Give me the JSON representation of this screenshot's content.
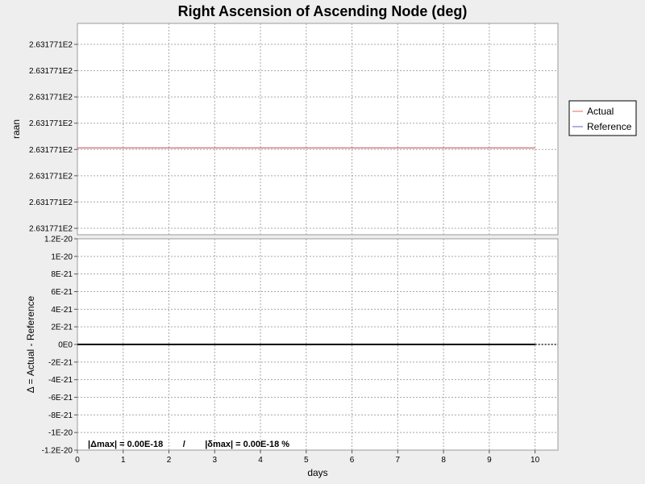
{
  "chart_data": [
    {
      "type": "line",
      "panel": "upper",
      "title": "Right Ascension of Ascending Node (deg)",
      "xlabel": "days",
      "ylabel": "raan",
      "xlim": [
        0,
        10.5
      ],
      "xticks": [
        "0",
        "1",
        "2",
        "3",
        "4",
        "5",
        "6",
        "7",
        "8",
        "9",
        "10"
      ],
      "yticks": [
        "2.631771E2",
        "2.631771E2",
        "2.631771E2",
        "2.631771E2",
        "2.631771E2",
        "2.631771E2",
        "2.631771E2",
        "2.631771E2"
      ],
      "ylim_index": [
        0,
        7
      ],
      "grid": true,
      "legend_position": "right",
      "series": [
        {
          "name": "Actual",
          "color": "#e8665c",
          "x": [
            0,
            10
          ],
          "y_index": [
            3.06,
            3.06
          ]
        },
        {
          "name": "Reference",
          "color": "#6060c0",
          "x": [
            0,
            10
          ],
          "y_index": [
            3.06,
            3.06
          ]
        }
      ]
    },
    {
      "type": "line",
      "panel": "lower",
      "xlabel": "days",
      "ylabel": "Δ = Actual - Reference",
      "xlim": [
        0,
        10.5
      ],
      "ylim": [
        -1.2e-20,
        1.2e-20
      ],
      "xticks": [
        "0",
        "1",
        "2",
        "3",
        "4",
        "5",
        "6",
        "7",
        "8",
        "9",
        "10"
      ],
      "yticks": [
        "1.2E-20",
        "1E-20",
        "8E-21",
        "6E-21",
        "4E-21",
        "2E-21",
        "0E0",
        "-2E-21",
        "-4E-21",
        "-6E-21",
        "-8E-21",
        "-1E-20",
        "-1.2E-20"
      ],
      "ytick_values": [
        1.2e-20,
        1e-20,
        8e-21,
        6e-21,
        4e-21,
        2e-21,
        0,
        -2e-21,
        -4e-21,
        -6e-21,
        -8e-21,
        -1e-20,
        -1.2e-20
      ],
      "grid": true,
      "series": [
        {
          "color": "#000000",
          "x": [
            0,
            10
          ],
          "y": [
            0,
            0
          ]
        }
      ],
      "annotation": "|Δmax| = 0.00E-18        /        |δmax| = 0.00E-18 %"
    }
  ]
}
